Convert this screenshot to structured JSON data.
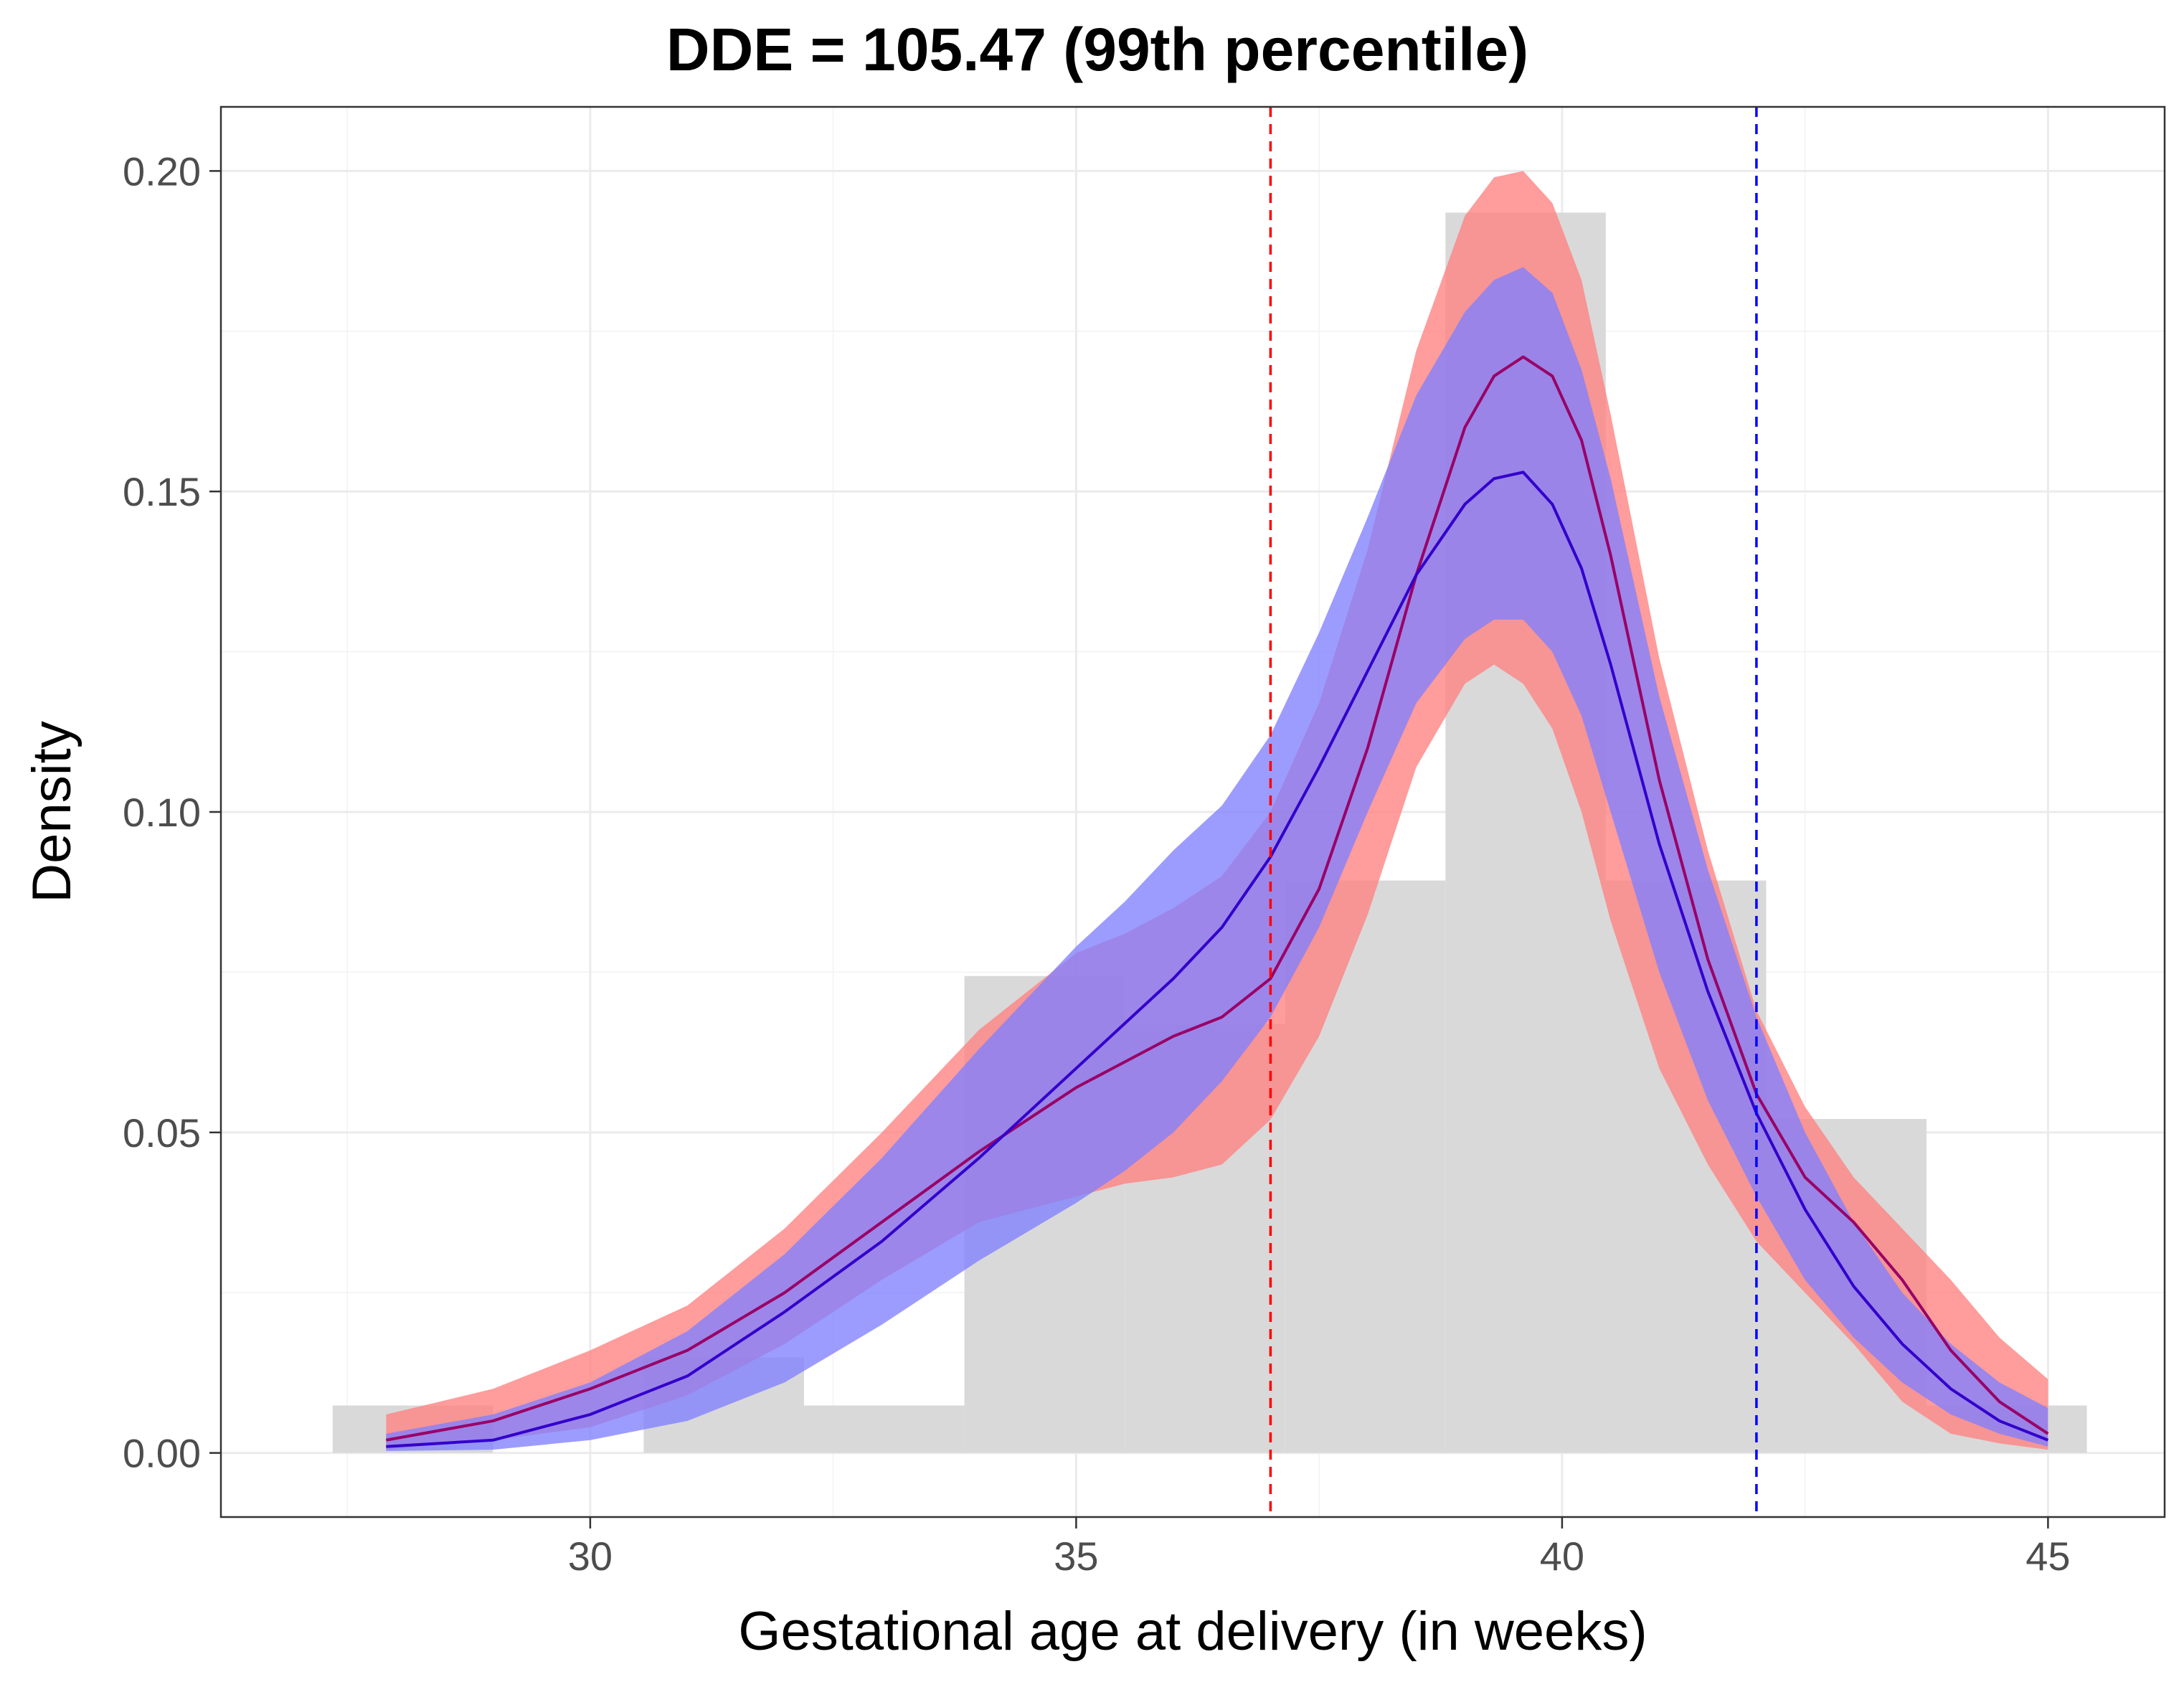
{
  "chart_data": {
    "type": "area",
    "title": "DDE = 105.47 (99th percentile)",
    "xlabel": "Gestational age at delivery (in weeks)",
    "ylabel": "Density",
    "xlim": [
      26.2,
      46.2
    ],
    "ylim": [
      -0.01,
      0.21
    ],
    "x_ticks": [
      30,
      35,
      40,
      45
    ],
    "x_tick_labels": [
      "30",
      "35",
      "40",
      "45"
    ],
    "y_ticks": [
      0.0,
      0.05,
      0.1,
      0.15,
      0.2
    ],
    "y_tick_labels": [
      "0.00",
      "0.05",
      "0.10",
      "0.15",
      "0.20"
    ],
    "grid": true,
    "histogram": {
      "bin_edges": [
        27.35,
        29.0,
        30.55,
        32.2,
        33.85,
        35.5,
        37.15,
        38.8,
        40.45,
        42.1,
        43.75,
        45.4
      ],
      "values": [
        0.0074,
        0.0,
        0.0149,
        0.0074,
        0.0744,
        0.0669,
        0.0893,
        0.1935,
        0.0893,
        0.0521,
        0.0074
      ],
      "color": "#d9d9d9"
    },
    "reference_lines": [
      {
        "x": 37,
        "color": "#ff0000",
        "style": "dashed"
      },
      {
        "x": 42,
        "color": "#0000ff",
        "style": "dashed"
      }
    ],
    "series": [
      {
        "name": "red",
        "line_color": "#990066",
        "band_color": "#ff8080",
        "x": [
          27.9,
          29.0,
          30.0,
          31.0,
          32.0,
          33.0,
          34.0,
          35.0,
          35.5,
          36.0,
          36.5,
          37.0,
          37.5,
          38.0,
          38.5,
          39.0,
          39.3,
          39.6,
          39.9,
          40.2,
          40.5,
          41.0,
          41.5,
          42.0,
          42.5,
          43.0,
          43.5,
          44.0,
          44.5,
          45.0
        ],
        "mean": [
          0.002,
          0.005,
          0.01,
          0.016,
          0.025,
          0.036,
          0.047,
          0.057,
          0.061,
          0.065,
          0.068,
          0.074,
          0.088,
          0.11,
          0.137,
          0.16,
          0.168,
          0.171,
          0.168,
          0.158,
          0.14,
          0.105,
          0.077,
          0.056,
          0.043,
          0.036,
          0.027,
          0.016,
          0.008,
          0.003
        ],
        "lower": [
          0.0005,
          0.002,
          0.004,
          0.009,
          0.017,
          0.027,
          0.036,
          0.04,
          0.042,
          0.043,
          0.045,
          0.052,
          0.065,
          0.084,
          0.107,
          0.12,
          0.123,
          0.12,
          0.113,
          0.1,
          0.083,
          0.06,
          0.045,
          0.033,
          0.025,
          0.017,
          0.008,
          0.003,
          0.0015,
          0.0005
        ],
        "upper": [
          0.006,
          0.01,
          0.016,
          0.023,
          0.035,
          0.05,
          0.066,
          0.078,
          0.081,
          0.085,
          0.09,
          0.1,
          0.117,
          0.141,
          0.172,
          0.193,
          0.199,
          0.2,
          0.195,
          0.183,
          0.162,
          0.124,
          0.094,
          0.069,
          0.054,
          0.043,
          0.035,
          0.027,
          0.018,
          0.0115
        ]
      },
      {
        "name": "blue",
        "line_color": "#3300cc",
        "band_color": "#8080ff",
        "x": [
          27.9,
          29.0,
          30.0,
          31.0,
          32.0,
          33.0,
          34.0,
          35.0,
          35.5,
          36.0,
          36.5,
          37.0,
          37.5,
          38.0,
          38.5,
          39.0,
          39.3,
          39.6,
          39.9,
          40.2,
          40.5,
          41.0,
          41.5,
          42.0,
          42.5,
          43.0,
          43.5,
          44.0,
          44.5,
          45.0
        ],
        "mean": [
          0.001,
          0.002,
          0.006,
          0.012,
          0.022,
          0.033,
          0.046,
          0.06,
          0.067,
          0.074,
          0.082,
          0.093,
          0.107,
          0.122,
          0.137,
          0.148,
          0.152,
          0.153,
          0.148,
          0.138,
          0.123,
          0.095,
          0.072,
          0.053,
          0.038,
          0.026,
          0.017,
          0.01,
          0.005,
          0.002
        ],
        "lower": [
          0.0003,
          0.0005,
          0.002,
          0.005,
          0.011,
          0.02,
          0.03,
          0.039,
          0.044,
          0.05,
          0.058,
          0.068,
          0.082,
          0.1,
          0.117,
          0.127,
          0.13,
          0.13,
          0.125,
          0.115,
          0.1,
          0.075,
          0.055,
          0.04,
          0.027,
          0.018,
          0.011,
          0.006,
          0.003,
          0.001
        ],
        "upper": [
          0.003,
          0.006,
          0.011,
          0.019,
          0.031,
          0.046,
          0.063,
          0.079,
          0.086,
          0.094,
          0.101,
          0.112,
          0.128,
          0.146,
          0.165,
          0.178,
          0.183,
          0.185,
          0.181,
          0.169,
          0.152,
          0.118,
          0.091,
          0.068,
          0.05,
          0.036,
          0.025,
          0.017,
          0.011,
          0.007
        ]
      }
    ]
  }
}
